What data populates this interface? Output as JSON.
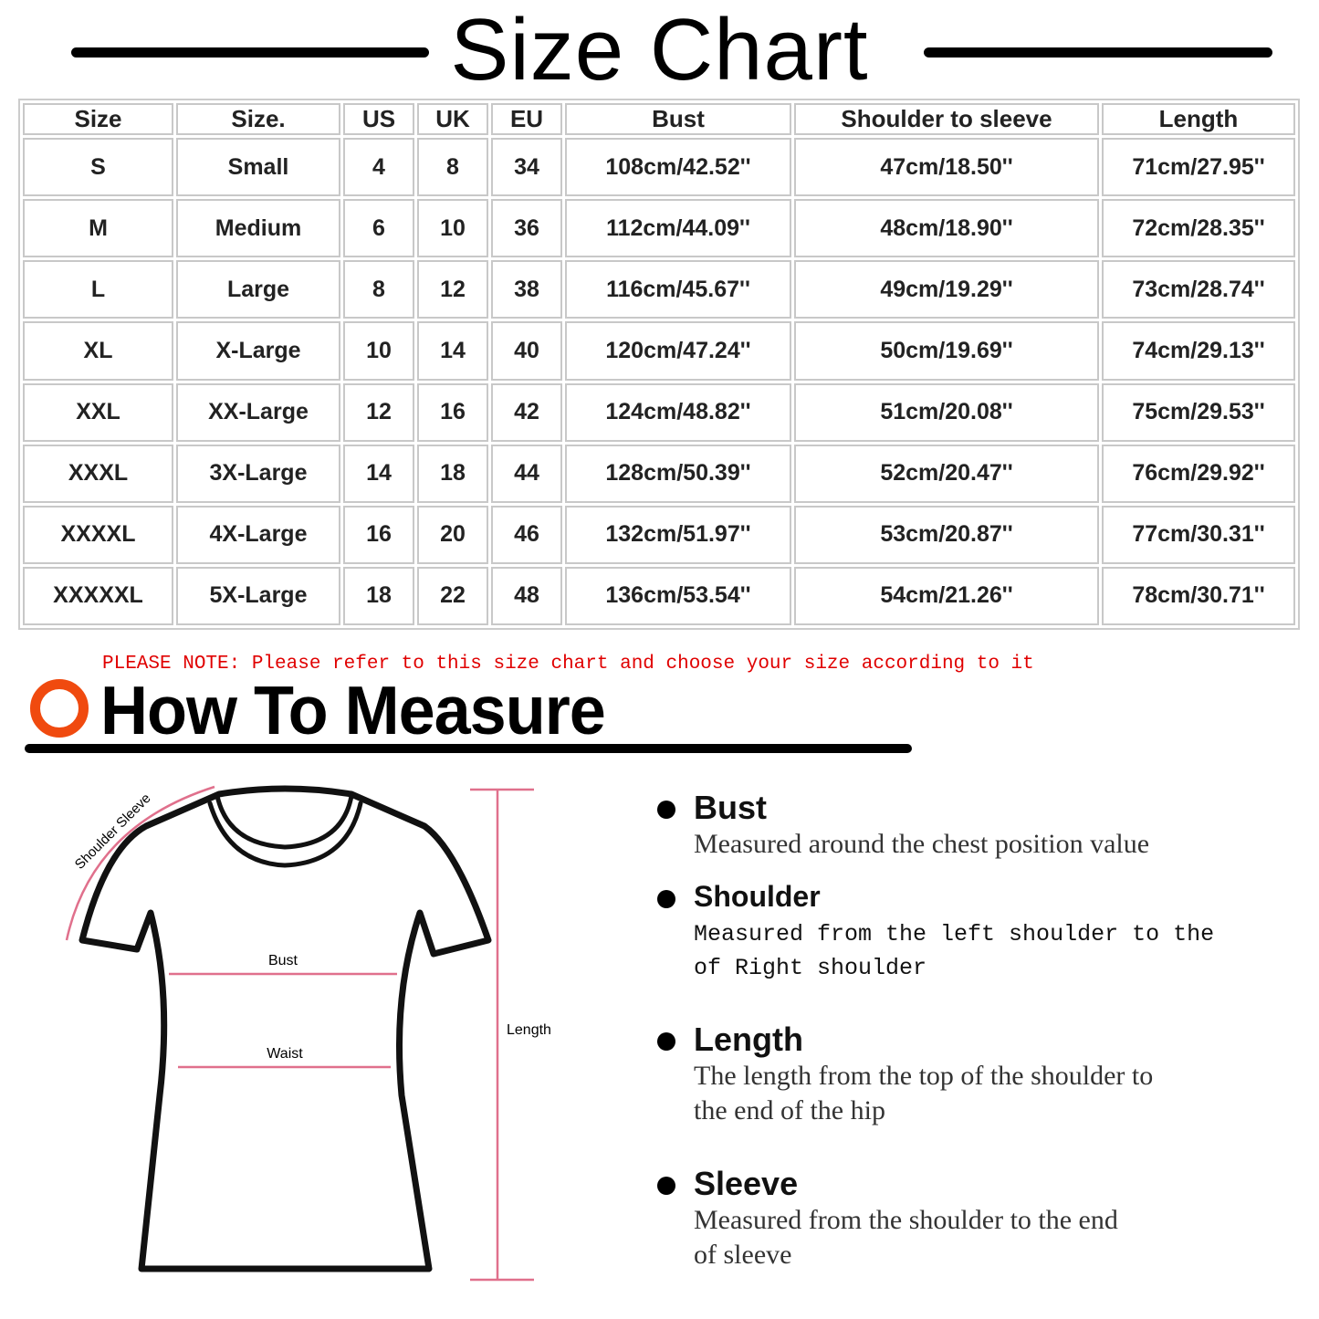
{
  "title": "Size Chart",
  "table": {
    "headers": [
      "Size",
      "Size.",
      "US",
      "UK",
      "EU",
      "Bust",
      "Shoulder to sleeve",
      "Length"
    ],
    "rows": [
      [
        "S",
        "Small",
        "4",
        "8",
        "34",
        "108cm/42.52''",
        "47cm/18.50''",
        "71cm/27.95''"
      ],
      [
        "M",
        "Medium",
        "6",
        "10",
        "36",
        "112cm/44.09''",
        "48cm/18.90''",
        "72cm/28.35''"
      ],
      [
        "L",
        "Large",
        "8",
        "12",
        "38",
        "116cm/45.67''",
        "49cm/19.29''",
        "73cm/28.74''"
      ],
      [
        "XL",
        "X-Large",
        "10",
        "14",
        "40",
        "120cm/47.24''",
        "50cm/19.69''",
        "74cm/29.13''"
      ],
      [
        "XXL",
        "XX-Large",
        "12",
        "16",
        "42",
        "124cm/48.82''",
        "51cm/20.08''",
        "75cm/29.53''"
      ],
      [
        "XXXL",
        "3X-Large",
        "14",
        "18",
        "44",
        "128cm/50.39''",
        "52cm/20.47''",
        "76cm/29.92''"
      ],
      [
        "XXXXL",
        "4X-Large",
        "16",
        "20",
        "46",
        "132cm/51.97''",
        "53cm/20.87''",
        "77cm/30.31''"
      ],
      [
        "XXXXXL",
        "5X-Large",
        "18",
        "22",
        "48",
        "136cm/53.54''",
        "54cm/21.26''",
        "78cm/30.71''"
      ]
    ]
  },
  "note": "PLEASE NOTE: Please refer to this size chart and choose your size according to it",
  "how_to": {
    "title": "How To Measure",
    "accent": "#f04a0f"
  },
  "diagram": {
    "shoulder_sleeve": "Shoulder Sleeve",
    "bust": "Bust",
    "waist": "Waist",
    "length": "Length",
    "line_color": "#e0708c"
  },
  "measures": [
    {
      "title": "Bust",
      "lines": [
        "Measured around the chest position value"
      ]
    },
    {
      "title": "Shoulder",
      "lines": [
        "Measured from the left shoulder to the",
        "of Right shoulder"
      ]
    },
    {
      "title": "Length",
      "lines": [
        "The length from the top of the shoulder to",
        "the end of the hip"
      ]
    },
    {
      "title": "Sleeve",
      "lines": [
        "Measured from the shoulder to the end",
        "of sleeve"
      ]
    }
  ]
}
